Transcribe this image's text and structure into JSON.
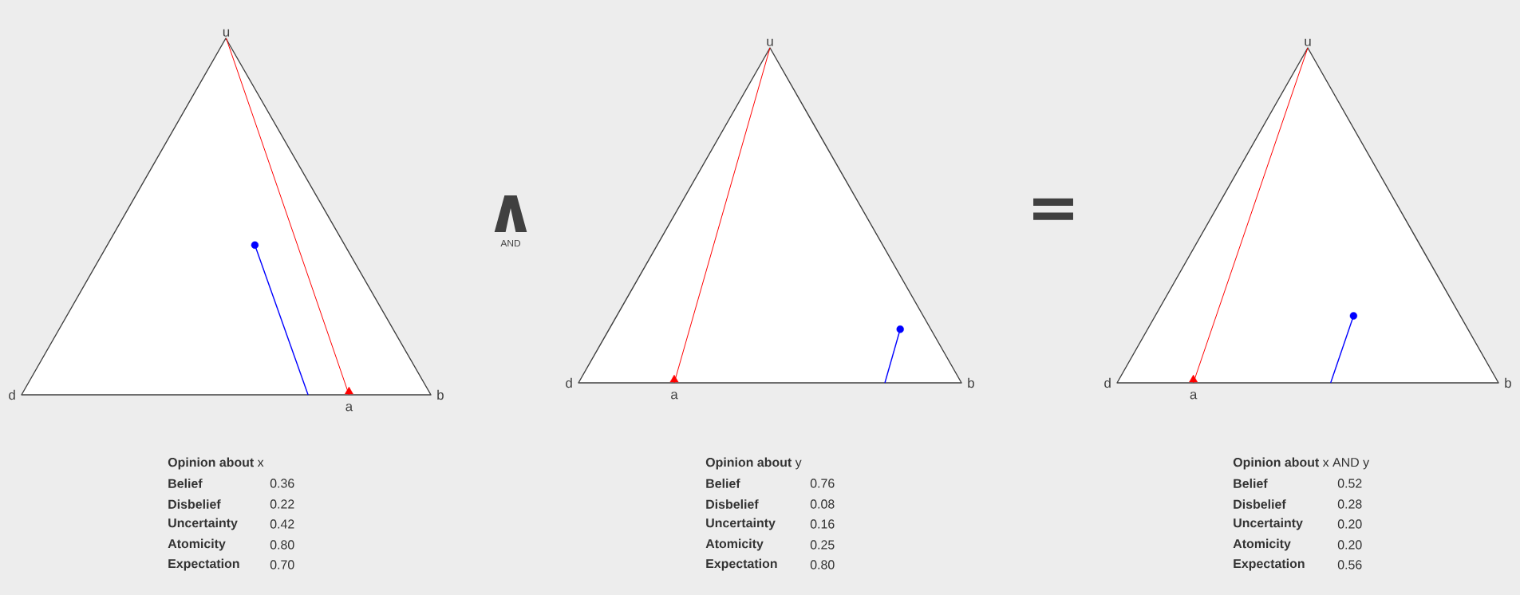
{
  "chart_data": [
    {
      "type": "other",
      "title": "**Opinion about** x",
      "categories": [
        "Belief",
        "Disbelief",
        "Uncertainty",
        "Atomicity",
        "Expectation"
      ],
      "values": [
        0.36,
        0.22,
        0.42,
        0.8,
        0.7
      ],
      "value_labels": [
        "0.36",
        "0.22",
        "0.42",
        "0.80",
        "0.70"
      ],
      "annotations": [
        "u",
        "d",
        "b",
        "a",
        "∧",
        "AND"
      ]
    },
    {
      "type": "other",
      "title": "**Opinion about** y",
      "categories": [
        "Belief",
        "Disbelief",
        "Uncertainty",
        "Atomicity",
        "Expectation"
      ],
      "values": [
        0.76,
        0.08,
        0.16,
        0.25,
        0.8
      ],
      "value_labels": [
        "0.76",
        "0.08",
        "0.16",
        "0.25",
        "0.80"
      ],
      "annotations": [
        "u",
        "d",
        "b",
        "a",
        "="
      ]
    },
    {
      "type": "other",
      "title": "**Opinion about** x AND y",
      "categories": [
        "Belief",
        "Disbelief",
        "Uncertainty",
        "Atomicity",
        "Expectation"
      ],
      "values": [
        0.52,
        0.28,
        0.2,
        0.2,
        0.56
      ],
      "value_labels": [
        "0.52",
        "0.28",
        "0.20",
        "0.20",
        "0.56"
      ],
      "annotations": [
        "u",
        "d",
        "b",
        "a"
      ]
    }
  ]
}
